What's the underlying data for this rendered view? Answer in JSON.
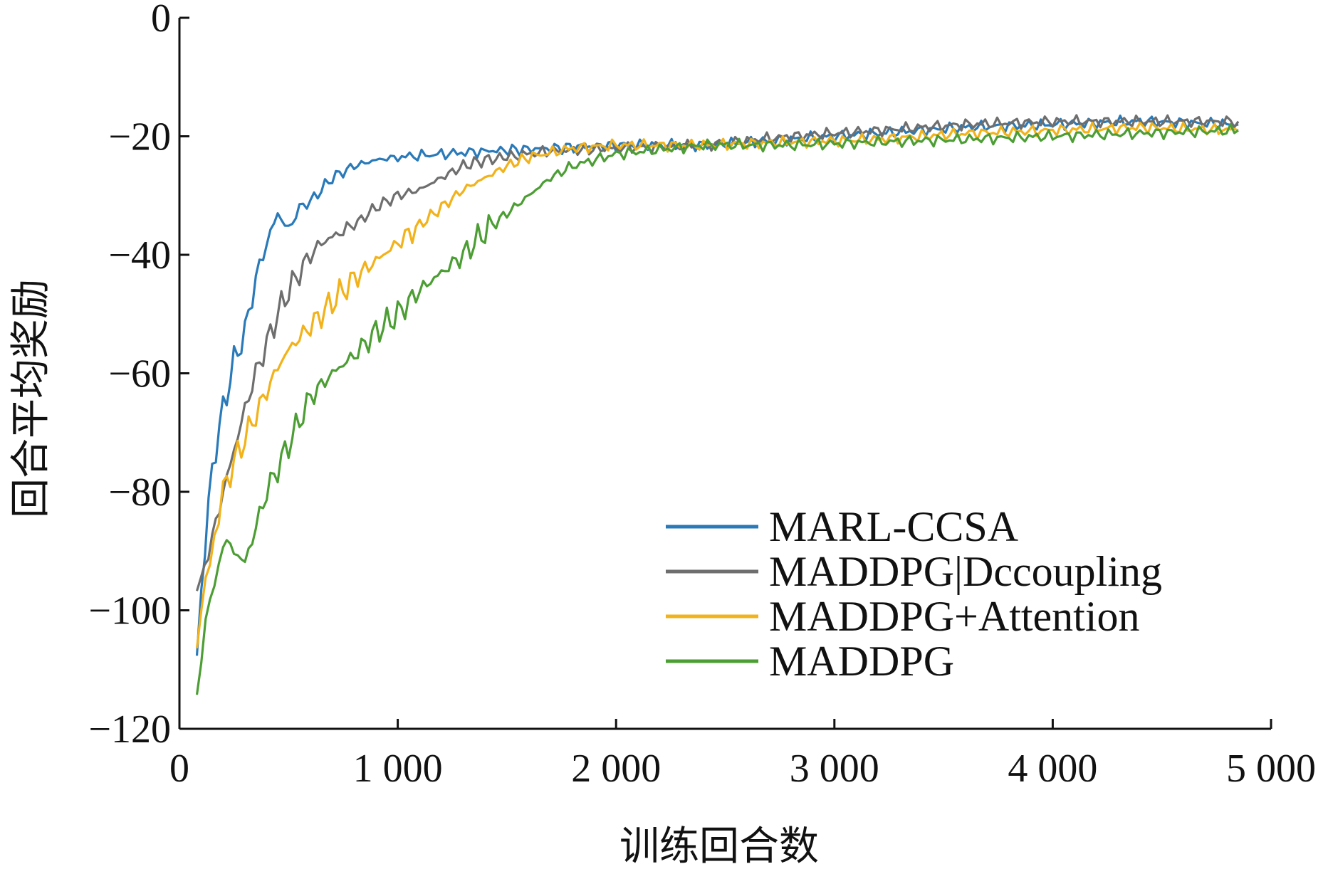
{
  "chart_data": {
    "type": "line",
    "title": "",
    "xlabel": "训练回合数",
    "ylabel": "回合平均奖励",
    "xlim": [
      0,
      5000
    ],
    "ylim": [
      -120,
      0
    ],
    "x_ticks": [
      0,
      1000,
      2000,
      3000,
      4000,
      5000
    ],
    "x_tick_labels": [
      "0",
      "1 000",
      "2 000",
      "3 000",
      "4 000",
      "5 000"
    ],
    "y_ticks": [
      0,
      -20,
      -40,
      -60,
      -80,
      -100,
      -120
    ],
    "y_tick_labels": [
      "0",
      "−20",
      "−40",
      "−60",
      "−80",
      "−100",
      "−120"
    ],
    "grid": false,
    "legend_position": "bottom-right",
    "series": [
      {
        "name": "MARL-CCSA",
        "color": "#2a7ab9",
        "points": [
          [
            80,
            -110
          ],
          [
            100,
            -96
          ],
          [
            150,
            -76
          ],
          [
            200,
            -66
          ],
          [
            250,
            -58
          ],
          [
            300,
            -53
          ],
          [
            350,
            -44
          ],
          [
            400,
            -38
          ],
          [
            450,
            -33
          ],
          [
            500,
            -36
          ],
          [
            550,
            -32
          ],
          [
            600,
            -31
          ],
          [
            650,
            -29
          ],
          [
            700,
            -27
          ],
          [
            750,
            -26
          ],
          [
            800,
            -25
          ],
          [
            900,
            -24
          ],
          [
            1000,
            -23.5
          ],
          [
            1200,
            -23
          ],
          [
            1400,
            -22.5
          ],
          [
            1700,
            -22
          ],
          [
            2000,
            -21.5
          ],
          [
            2400,
            -21.5
          ],
          [
            2800,
            -20.5
          ],
          [
            3200,
            -19.5
          ],
          [
            3600,
            -18.5
          ],
          [
            4000,
            -18
          ],
          [
            4400,
            -17.5
          ],
          [
            4850,
            -18
          ]
        ]
      },
      {
        "name": "MADDPG|Dccoupling",
        "color": "#6e6e6e",
        "points": [
          [
            80,
            -97
          ],
          [
            150,
            -88
          ],
          [
            200,
            -80
          ],
          [
            250,
            -73
          ],
          [
            300,
            -66
          ],
          [
            350,
            -60
          ],
          [
            400,
            -55
          ],
          [
            450,
            -50
          ],
          [
            500,
            -46
          ],
          [
            550,
            -43
          ],
          [
            600,
            -40
          ],
          [
            650,
            -38
          ],
          [
            700,
            -37
          ],
          [
            800,
            -35
          ],
          [
            900,
            -32
          ],
          [
            1000,
            -30
          ],
          [
            1100,
            -29
          ],
          [
            1200,
            -27
          ],
          [
            1300,
            -25
          ],
          [
            1400,
            -24
          ],
          [
            1500,
            -23.5
          ],
          [
            1700,
            -22.5
          ],
          [
            2000,
            -22
          ],
          [
            2400,
            -21.5
          ],
          [
            2800,
            -20
          ],
          [
            3200,
            -19
          ],
          [
            3600,
            -18
          ],
          [
            4000,
            -17.5
          ],
          [
            4400,
            -17.5
          ],
          [
            4850,
            -17.5
          ]
        ]
      },
      {
        "name": "MADDPG+Attention",
        "color": "#f2b21a",
        "points": [
          [
            80,
            -106
          ],
          [
            120,
            -96
          ],
          [
            160,
            -87
          ],
          [
            200,
            -80
          ],
          [
            250,
            -75
          ],
          [
            300,
            -71
          ],
          [
            350,
            -67
          ],
          [
            400,
            -63
          ],
          [
            450,
            -59
          ],
          [
            500,
            -56
          ],
          [
            600,
            -52
          ],
          [
            700,
            -48
          ],
          [
            800,
            -44
          ],
          [
            900,
            -41
          ],
          [
            1000,
            -38
          ],
          [
            1100,
            -35
          ],
          [
            1200,
            -32
          ],
          [
            1300,
            -29
          ],
          [
            1400,
            -27
          ],
          [
            1500,
            -25
          ],
          [
            1600,
            -23.5
          ],
          [
            1800,
            -22
          ],
          [
            2000,
            -21.5
          ],
          [
            2400,
            -21.5
          ],
          [
            2800,
            -21
          ],
          [
            3200,
            -20.5
          ],
          [
            3600,
            -19.5
          ],
          [
            4000,
            -19
          ],
          [
            4400,
            -18.5
          ],
          [
            4850,
            -19
          ]
        ]
      },
      {
        "name": "MADDPG",
        "color": "#4c9e34",
        "points": [
          [
            80,
            -114
          ],
          [
            120,
            -103
          ],
          [
            160,
            -95
          ],
          [
            200,
            -88
          ],
          [
            250,
            -90
          ],
          [
            300,
            -92
          ],
          [
            350,
            -86
          ],
          [
            400,
            -80
          ],
          [
            450,
            -76
          ],
          [
            500,
            -72
          ],
          [
            550,
            -68
          ],
          [
            600,
            -64
          ],
          [
            700,
            -60
          ],
          [
            800,
            -57
          ],
          [
            900,
            -53
          ],
          [
            1000,
            -50
          ],
          [
            1100,
            -46
          ],
          [
            1200,
            -43
          ],
          [
            1300,
            -40
          ],
          [
            1400,
            -36
          ],
          [
            1500,
            -33
          ],
          [
            1600,
            -30
          ],
          [
            1700,
            -27
          ],
          [
            1800,
            -25
          ],
          [
            2000,
            -23
          ],
          [
            2400,
            -21.5
          ],
          [
            2800,
            -21.5
          ],
          [
            3200,
            -21
          ],
          [
            3600,
            -20.5
          ],
          [
            4000,
            -20
          ],
          [
            4400,
            -19.5
          ],
          [
            4850,
            -19
          ]
        ]
      }
    ]
  }
}
